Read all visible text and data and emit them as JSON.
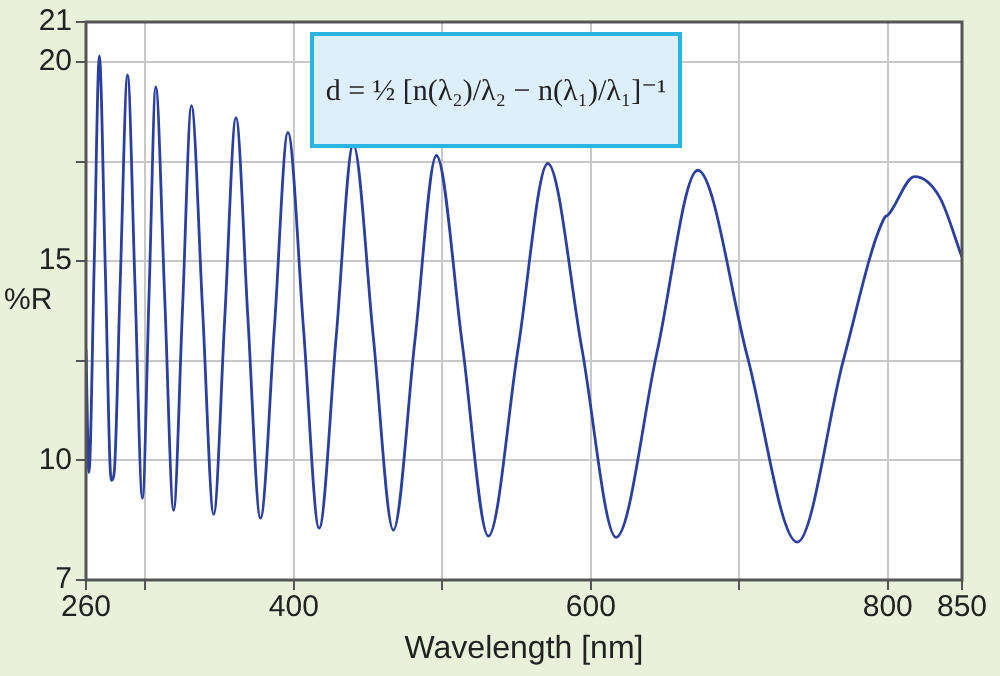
{
  "chart_data": {
    "type": "line",
    "xlabel": "Wavelength [nm]",
    "ylabel": "%R",
    "annotations": [
      "d = ½ [n(λ₂)/λ₂ − n(λ₁)/λ₁]⁻¹"
    ],
    "xlim": [
      260,
      850
    ],
    "xticks": [
      260,
      {
        "value": 300,
        "label": null
      },
      400,
      {
        "value": 500,
        "label": null
      },
      600,
      {
        "value": 700,
        "label": null
      },
      800,
      850
    ],
    "ylim": [
      7,
      21
    ],
    "yticks": [
      7,
      10,
      {
        "value": 12.5,
        "label": null
      },
      15,
      {
        "value": 17.5,
        "label": null
      },
      20,
      21
    ],
    "grid": true,
    "marker": "none",
    "line_style": "solid",
    "series": [
      {
        "color": "#2b3f9e",
        "x": [
          260,
          262,
          265.5,
          269,
          273,
          277,
          279,
          283,
          288,
          293,
          298,
          302.5,
          307,
          313,
          319,
          325,
          331,
          338.5,
          346,
          353.5,
          361,
          369,
          377.5,
          387,
          396,
          406.5,
          417,
          428.5,
          440,
          453.5,
          467,
          481.5,
          496,
          513.5,
          531,
          551,
          571,
          594,
          617,
          644.5,
          672,
          705.5,
          739,
          770,
          798,
          800,
          818,
          835,
          850
        ],
        "values": [
          12.8,
          9.7,
          14.9,
          20.15,
          14.8,
          9.5,
          9.7,
          14.4,
          19.67,
          14.4,
          9.05,
          14.2,
          19.37,
          14.1,
          8.75,
          13.8,
          18.9,
          13.8,
          8.65,
          13.6,
          18.6,
          13.6,
          8.55,
          13.4,
          18.23,
          13.3,
          8.3,
          13.1,
          17.93,
          13.1,
          8.25,
          13.0,
          17.65,
          12.9,
          8.1,
          12.8,
          17.45,
          12.8,
          8.07,
          12.7,
          17.28,
          12.6,
          7.95,
          12.5,
          16.1,
          16.15,
          17.12,
          16.6,
          15.1
        ]
      }
    ]
  }
}
